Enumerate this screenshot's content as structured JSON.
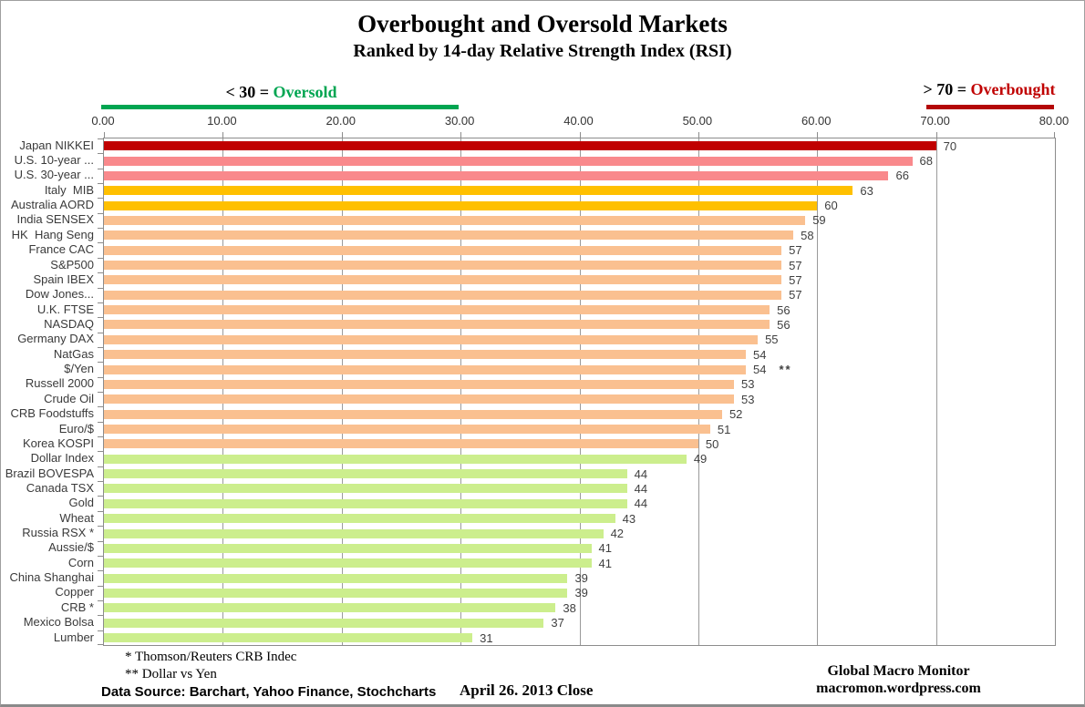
{
  "title": "Overbought and Oversold Markets",
  "subtitle": "Ranked by 14-day Relative Strength Index (RSI)",
  "legend": {
    "oversold_prefix": "< 30 = ",
    "oversold_word": "Oversold",
    "oversold_color": "#00A551",
    "overbought_prefix": "> 70 = ",
    "overbought_word": "Overbought",
    "overbought_color": "#C00000",
    "oversold_line_span": [
      0,
      30
    ],
    "overbought_line_span": [
      70,
      80
    ]
  },
  "footnotes": {
    "line1": "* Thomson/Reuters CRB Indec",
    "line2": "** Dollar vs Yen"
  },
  "footer": {
    "data_source": "Data Source:  Barchart,  Yahoo Finance, Stochcharts",
    "close_date": "April 26. 2013  Close",
    "brand_line1": "Global Macro Monitor",
    "brand_line2": "macromon.wordpress.com"
  },
  "chart_data": {
    "type": "bar",
    "orientation": "horizontal",
    "xlabel": "",
    "ylabel": "",
    "xlim": [
      0,
      80
    ],
    "grid": true,
    "x_tick_values": [
      0,
      10,
      20,
      30,
      40,
      50,
      60,
      70,
      80
    ],
    "x_tick_labels": [
      "0.00",
      "10.00",
      "20.00",
      "30.00",
      "40.00",
      "50.00",
      "60.00",
      "70.00",
      "80.00"
    ],
    "colors": {
      "darkred": "#C00000",
      "pink": "#F9898C",
      "gold": "#FFC000",
      "peach": "#FAC090",
      "green": "#CCEE8D"
    },
    "rows": [
      {
        "label": "Japan NIKKEI",
        "value": 70,
        "color": "darkred"
      },
      {
        "label": "U.S. 10-year ...",
        "value": 68,
        "color": "pink"
      },
      {
        "label": "U.S. 30-year ...",
        "value": 66,
        "color": "pink"
      },
      {
        "label": "Italy  MIB",
        "value": 63,
        "color": "gold"
      },
      {
        "label": "Australia AORD",
        "value": 60,
        "color": "gold"
      },
      {
        "label": "India SENSEX",
        "value": 59,
        "color": "peach"
      },
      {
        "label": "HK  Hang Seng",
        "value": 58,
        "color": "peach"
      },
      {
        "label": "France CAC",
        "value": 57,
        "color": "peach"
      },
      {
        "label": "S&P500",
        "value": 57,
        "color": "peach"
      },
      {
        "label": "Spain IBEX",
        "value": 57,
        "color": "peach"
      },
      {
        "label": "Dow Jones...",
        "value": 57,
        "color": "peach"
      },
      {
        "label": "U.K. FTSE",
        "value": 56,
        "color": "peach"
      },
      {
        "label": "NASDAQ",
        "value": 56,
        "color": "peach"
      },
      {
        "label": "Germany DAX",
        "value": 55,
        "color": "peach"
      },
      {
        "label": "NatGas",
        "value": 54,
        "color": "peach"
      },
      {
        "label": "$/Yen",
        "value": 54,
        "color": "peach",
        "note": "**"
      },
      {
        "label": "Russell 2000",
        "value": 53,
        "color": "peach"
      },
      {
        "label": "Crude Oil",
        "value": 53,
        "color": "peach"
      },
      {
        "label": "CRB Foodstuffs",
        "value": 52,
        "color": "peach"
      },
      {
        "label": "Euro/$",
        "value": 51,
        "color": "peach"
      },
      {
        "label": "Korea KOSPI",
        "value": 50,
        "color": "peach"
      },
      {
        "label": "Dollar Index",
        "value": 49,
        "color": "green"
      },
      {
        "label": "Brazil BOVESPA",
        "value": 44,
        "color": "green"
      },
      {
        "label": "Canada TSX",
        "value": 44,
        "color": "green"
      },
      {
        "label": "Gold",
        "value": 44,
        "color": "green"
      },
      {
        "label": "Wheat",
        "value": 43,
        "color": "green"
      },
      {
        "label": "Russia RSX *",
        "value": 42,
        "color": "green"
      },
      {
        "label": "Aussie/$",
        "value": 41,
        "color": "green"
      },
      {
        "label": "Corn",
        "value": 41,
        "color": "green"
      },
      {
        "label": "China Shanghai",
        "value": 39,
        "color": "green"
      },
      {
        "label": "Copper",
        "value": 39,
        "color": "green"
      },
      {
        "label": "CRB *",
        "value": 38,
        "color": "green"
      },
      {
        "label": "Mexico Bolsa",
        "value": 37,
        "color": "green"
      },
      {
        "label": "Lumber",
        "value": 31,
        "color": "green"
      }
    ]
  }
}
